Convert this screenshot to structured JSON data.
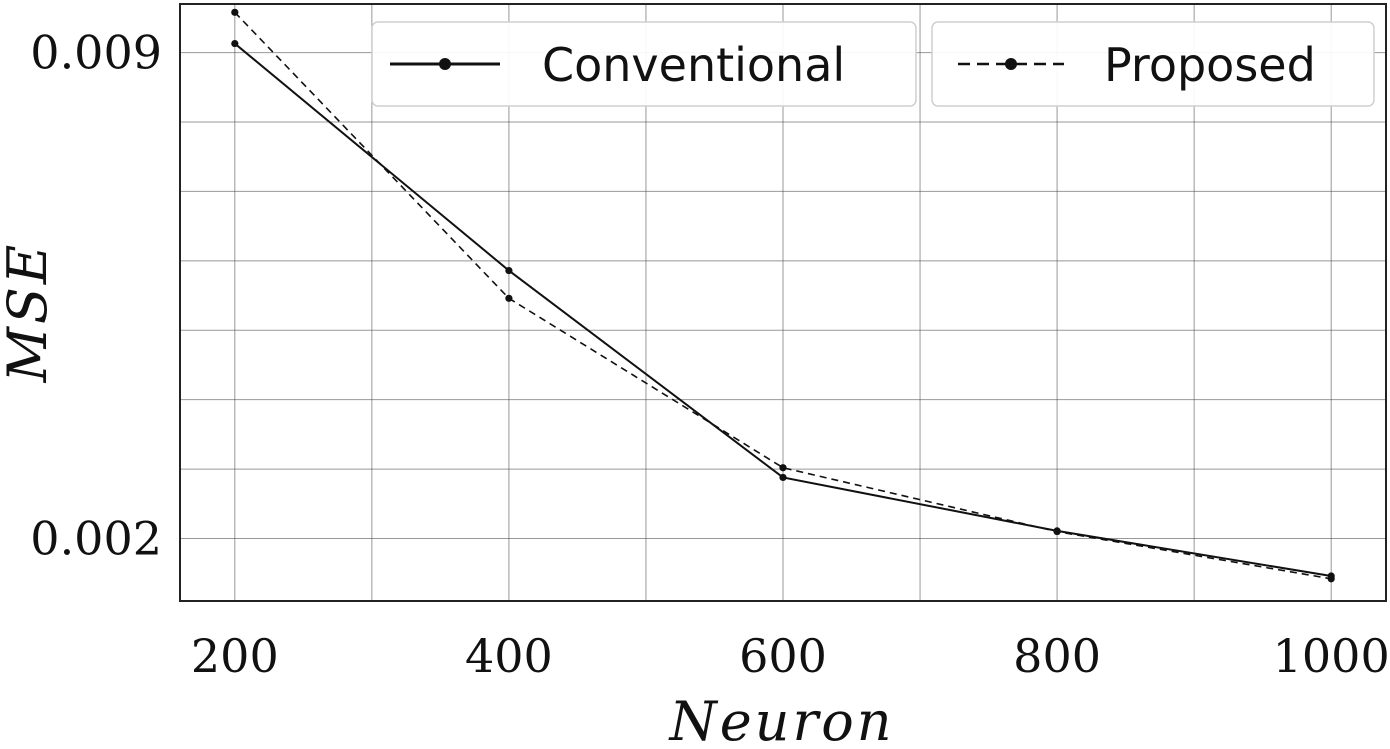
{
  "chart_data": {
    "type": "line",
    "title": "",
    "xlabel": "Neuron",
    "ylabel": "MSE",
    "x": [
      200,
      400,
      600,
      800,
      1000
    ],
    "xticks": [
      "200",
      "400",
      "600",
      "800",
      "1000"
    ],
    "yticks": [
      0.002,
      0.009
    ],
    "ytick_labels": [
      "0.002",
      "0.009"
    ],
    "xlim": [
      160,
      1040
    ],
    "ylim": [
      0.0011,
      0.0097
    ],
    "grid": true,
    "legend_position": "top-right",
    "series": [
      {
        "name": "Conventional",
        "style": "solid",
        "color": "#111111",
        "values": [
          0.00913,
          0.00586,
          0.00288,
          0.00211,
          0.00146
        ]
      },
      {
        "name": "Proposed",
        "style": "dashed",
        "color": "#111111",
        "values": [
          0.00958,
          0.00546,
          0.00302,
          0.0021,
          0.00142
        ]
      }
    ]
  }
}
